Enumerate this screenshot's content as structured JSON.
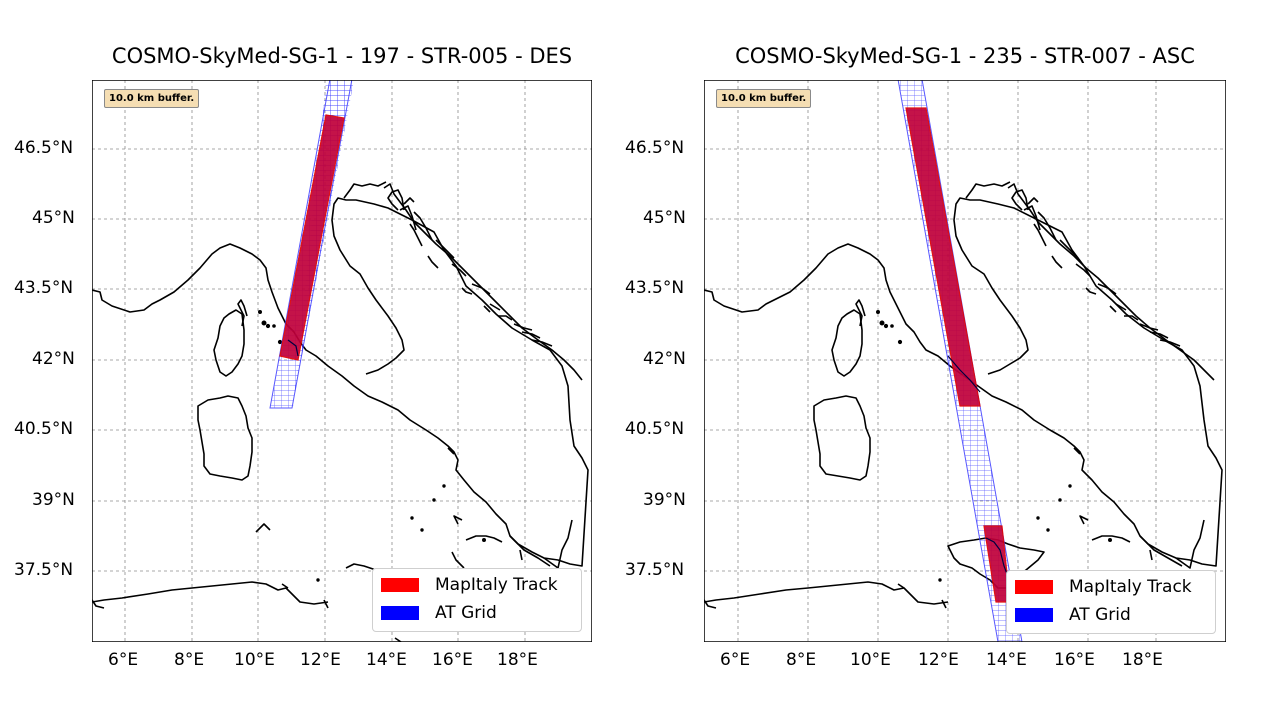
{
  "colors": {
    "track": "#e00000",
    "track_fill": "#c0003a",
    "grid": "#1010ff",
    "coast": "#000000",
    "gridline": "#8c8c8c"
  },
  "maps": [
    {
      "title": "COSMO-SkyMed-SG-1 - 197 - STR-005 - DES",
      "buffer_note": "10.0 km buffer.",
      "legend": {
        "track_label": "MapItaly Track",
        "grid_label": "AT Grid",
        "placement": "lower-right"
      },
      "xlim": [
        5,
        20
      ],
      "ylim": [
        36.5,
        47.9
      ],
      "lat_ticks": [
        "46.5°N",
        "45°N",
        "43.5°N",
        "42°N",
        "40.5°N",
        "39°N",
        "37.5°N"
      ],
      "lon_ticks": [
        "6°E",
        "8°E",
        "10°E",
        "12°E",
        "14°E",
        "16°E",
        "18°E"
      ],
      "grid_strip": {
        "start": [
          12.6,
          48.5
        ],
        "end": [
          10.75,
          41.0
        ],
        "half_width_lon": 0.35
      },
      "track_strip": {
        "start": [
          12.3,
          47.2
        ],
        "end": [
          11.0,
          42.0
        ],
        "half_width_lon": 0.3
      }
    },
    {
      "title": "COSMO-SkyMed-SG-1 - 235 - STR-007 - ASC",
      "buffer_note": "10.0 km buffer.",
      "legend": {
        "track_label": "MapItaly Track",
        "grid_label": "AT Grid",
        "placement": "lower-right"
      },
      "xlim": [
        5,
        20
      ],
      "ylim": [
        36.5,
        47.9
      ],
      "lat_ticks": [
        "46.5°N",
        "45°N",
        "43.5°N",
        "42°N",
        "40.5°N",
        "39°N",
        "37.5°N"
      ],
      "lon_ticks": [
        "6°E",
        "8°E",
        "10°E",
        "12°E",
        "14°E",
        "16°E",
        "18°E"
      ],
      "grid_strip": {
        "start": [
          10.85,
          48.5
        ],
        "end": [
          13.75,
          36.4
        ],
        "half_width_lon": 0.32
      },
      "track_strip": {
        "start": [
          11.15,
          47.2
        ],
        "end": [
          12.75,
          41.2
        ],
        "half_width_lon": 0.28
      },
      "track_strip_2": {
        "start": [
          13.25,
          38.4
        ],
        "end": [
          13.55,
          36.9
        ],
        "half_width_lon": 0.22
      }
    }
  ]
}
